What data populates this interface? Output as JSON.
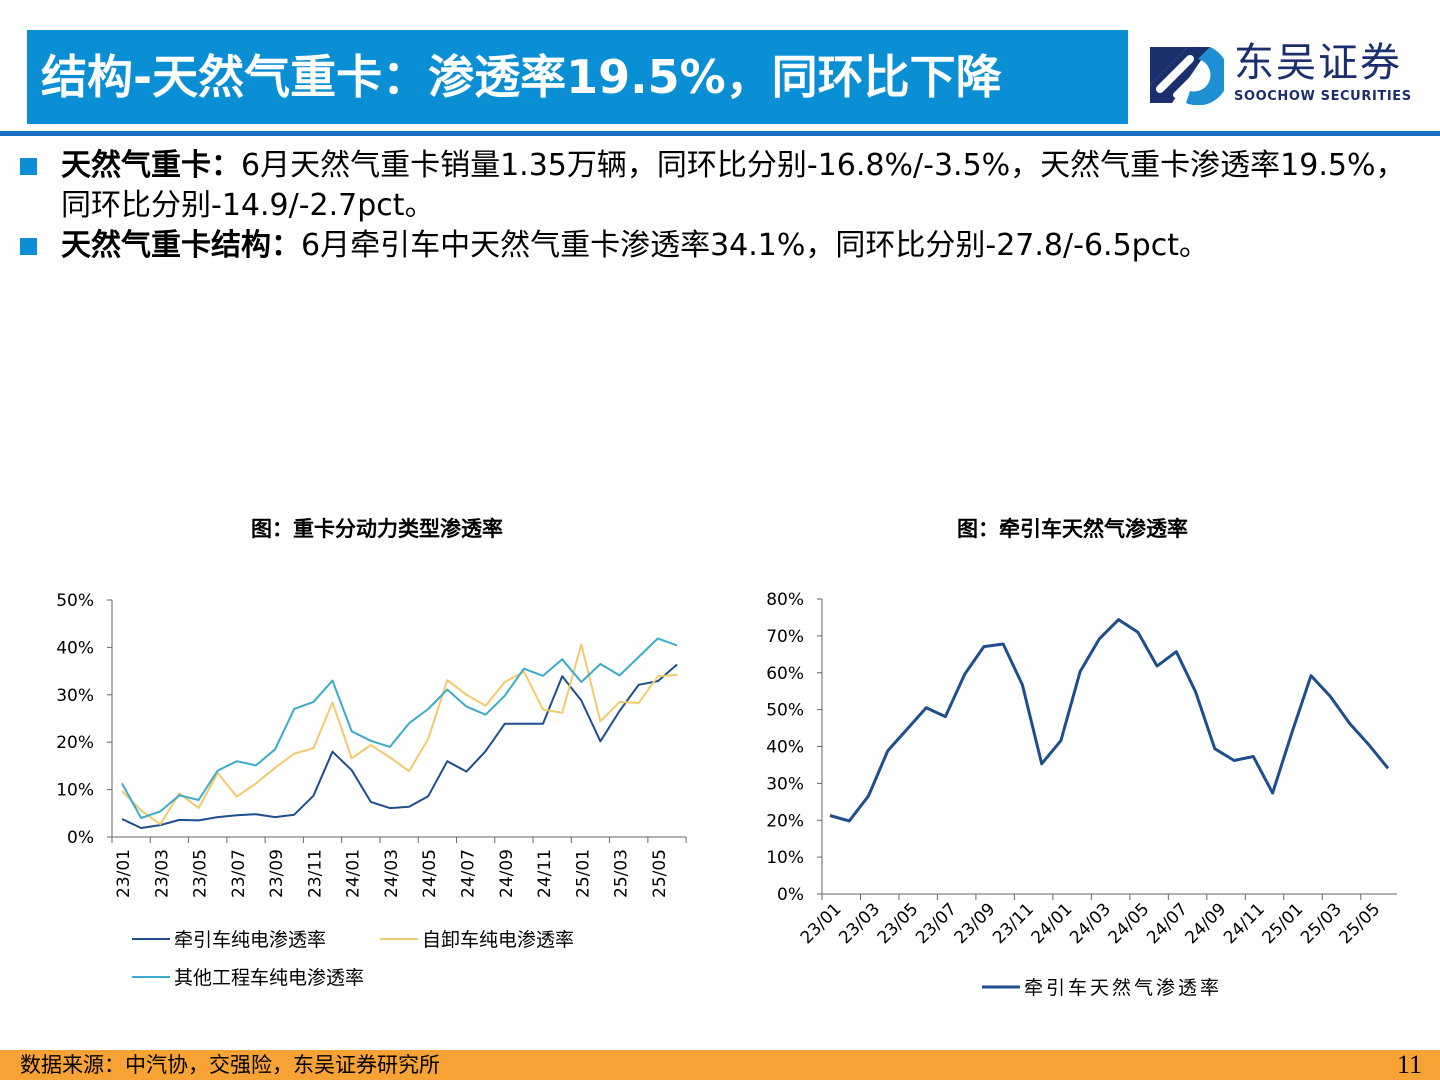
{
  "header": {
    "title": "结构-天然气重卡：渗透率19.5%，同环比下降",
    "logo_cn": "东吴证券",
    "logo_en": "SOOCHOW SECURITIES",
    "colors": {
      "title_bg": "#0b8fd4",
      "rule": "#1b6fc2",
      "logo": "#1b2f6e"
    }
  },
  "bullets": [
    {
      "label": "天然气重卡：",
      "text": "6月天然气重卡销量1.35万辆，同环比分别-16.8%/-3.5%，天然气重卡渗透率19.5%，同环比分别-14.9/-2.7pct。"
    },
    {
      "label": "天然气重卡结构：",
      "text": "6月牵引车中天然气重卡渗透率34.1%，同环比分别-27.8/-6.5pct。"
    }
  ],
  "chart_data": [
    {
      "type": "line",
      "title": "图：重卡分动力类型渗透率",
      "x": [
        "23/01",
        "23/02",
        "23/03",
        "23/04",
        "23/05",
        "23/06",
        "23/07",
        "23/08",
        "23/09",
        "23/10",
        "23/11",
        "23/12",
        "24/01",
        "24/02",
        "24/03",
        "24/04",
        "24/05",
        "24/06",
        "24/07",
        "24/08",
        "24/09",
        "24/10",
        "24/11",
        "24/12",
        "25/01",
        "25/02",
        "25/03",
        "25/04",
        "25/05",
        "25/06"
      ],
      "x_tick_labels": [
        "23/01",
        "23/03",
        "23/05",
        "23/07",
        "23/09",
        "23/11",
        "24/01",
        "24/03",
        "24/05",
        "24/07",
        "24/09",
        "24/11",
        "25/01",
        "25/03",
        "25/05"
      ],
      "ylim": [
        0,
        50
      ],
      "y_ticks": [
        "0%",
        "10%",
        "20%",
        "30%",
        "40%",
        "50%"
      ],
      "grid": false,
      "legend": "bottom",
      "series": [
        {
          "name": "牵引车纯电渗透率",
          "color": "#1f4e8c",
          "values": [
            3.8,
            1.9,
            2.5,
            3.6,
            3.5,
            4.2,
            4.6,
            4.8,
            4.2,
            4.7,
            8.7,
            18.0,
            14.1,
            7.4,
            6.1,
            6.4,
            8.6,
            16.0,
            13.8,
            18.1,
            23.9,
            23.9,
            23.9,
            33.9,
            28.8,
            20.2,
            26.6,
            32.1,
            32.9,
            36.4
          ]
        },
        {
          "name": "自卸车纯电渗透率",
          "color": "#f2ca6b",
          "values": [
            9.7,
            5.6,
            2.7,
            9.2,
            6.1,
            13.5,
            8.5,
            11.3,
            14.6,
            17.6,
            18.7,
            28.4,
            16.6,
            19.4,
            16.8,
            13.9,
            20.7,
            33.1,
            30.0,
            27.7,
            32.7,
            34.9,
            26.9,
            26.2,
            40.6,
            24.4,
            28.5,
            28.3,
            33.9,
            34.2
          ]
        },
        {
          "name": "其他工程车纯电渗透率",
          "color": "#3aabc9",
          "values": [
            11.3,
            4.0,
            5.4,
            8.8,
            7.8,
            14.0,
            16.0,
            15.1,
            18.5,
            27.0,
            28.5,
            33.0,
            22.3,
            20.3,
            19.0,
            24.0,
            27.0,
            31.1,
            27.5,
            25.8,
            29.8,
            35.5,
            34.0,
            37.5,
            32.7,
            36.5,
            34.1,
            38.0,
            41.9,
            40.4
          ]
        }
      ]
    },
    {
      "type": "line",
      "title": "图：牵引车天然气渗透率",
      "x": [
        "23/01",
        "23/02",
        "23/03",
        "23/04",
        "23/05",
        "23/06",
        "23/07",
        "23/08",
        "23/09",
        "23/10",
        "23/11",
        "23/12",
        "24/01",
        "24/02",
        "24/03",
        "24/04",
        "24/05",
        "24/06",
        "24/07",
        "24/08",
        "24/09",
        "24/10",
        "24/11",
        "24/12",
        "25/01",
        "25/02",
        "25/03",
        "25/04",
        "25/05",
        "25/06"
      ],
      "x_tick_labels": [
        "23/01",
        "23/03",
        "23/05",
        "23/07",
        "23/09",
        "23/11",
        "24/01",
        "24/03",
        "24/05",
        "24/07",
        "24/09",
        "24/11",
        "25/01",
        "25/03",
        "25/05"
      ],
      "ylim": [
        0,
        80
      ],
      "y_ticks": [
        "0%",
        "10%",
        "20%",
        "30%",
        "40%",
        "50%",
        "60%",
        "70%",
        "80%"
      ],
      "grid": false,
      "legend": "bottom",
      "series": [
        {
          "name": "牵引车天然气渗透率",
          "color": "#1f4e8c",
          "values": [
            21.3,
            19.8,
            26.6,
            38.8,
            44.7,
            50.5,
            48.1,
            59.6,
            67.1,
            67.8,
            56.7,
            35.3,
            41.6,
            60.3,
            69.2,
            74.4,
            71.0,
            61.8,
            65.7,
            54.8,
            39.4,
            36.2,
            37.3,
            27.4,
            43.7,
            59.2,
            53.6,
            46.3,
            40.5,
            34.1
          ]
        }
      ]
    }
  ],
  "footer": {
    "source": "数据来源：中汽协，交强险，东吴证券研究所",
    "page": "11",
    "color": "#f7a234"
  }
}
